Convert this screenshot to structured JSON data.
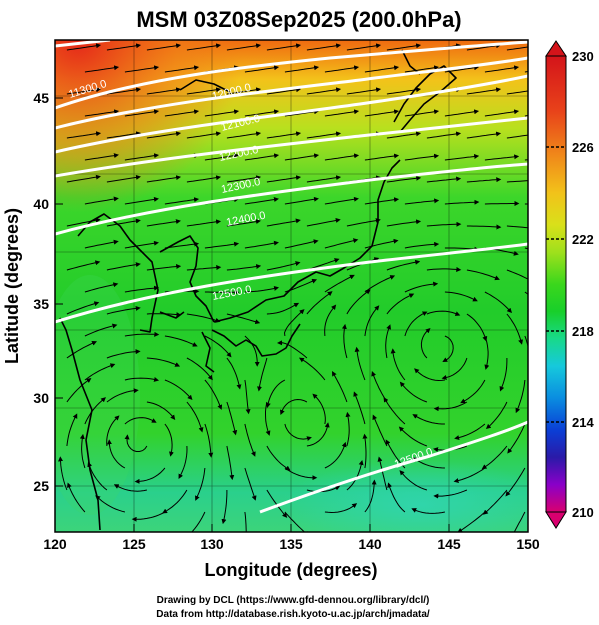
{
  "title": "MSM 03Z08Sep2025 (200.0hPa)",
  "axes": {
    "xlabel": "Longitude (degrees)",
    "ylabel": "Latitude (degrees)",
    "xticks": [
      "120",
      "125",
      "130",
      "135",
      "140",
      "145",
      "150"
    ],
    "yticks": [
      "25",
      "30",
      "35",
      "40",
      "45"
    ]
  },
  "colorbar": {
    "labels": [
      "230",
      "226",
      "222",
      "218",
      "214",
      "210"
    ],
    "colors": [
      "#d9006f",
      "#e000c8",
      "#2a1aa8",
      "#0a3fd6",
      "#0a8de0",
      "#16c9dc",
      "#18d98a",
      "#18cf2a",
      "#3bd71c",
      "#9fe01c",
      "#d9e01a",
      "#f2c21a",
      "#f08a1a",
      "#e8421a",
      "#d4141a"
    ]
  },
  "contour_labels": [
    "11300.0",
    "12000.0",
    "12100.0",
    "12200.0",
    "12300.0",
    "12400.0",
    "12500.0",
    "12500.0"
  ],
  "credits": {
    "line1": "Drawing by DCL (https://www.gfd-dennou.org/library/dcl/)",
    "line2": "Data from http://database.rish.kyoto-u.ac.jp/arch/jmadata/"
  }
}
